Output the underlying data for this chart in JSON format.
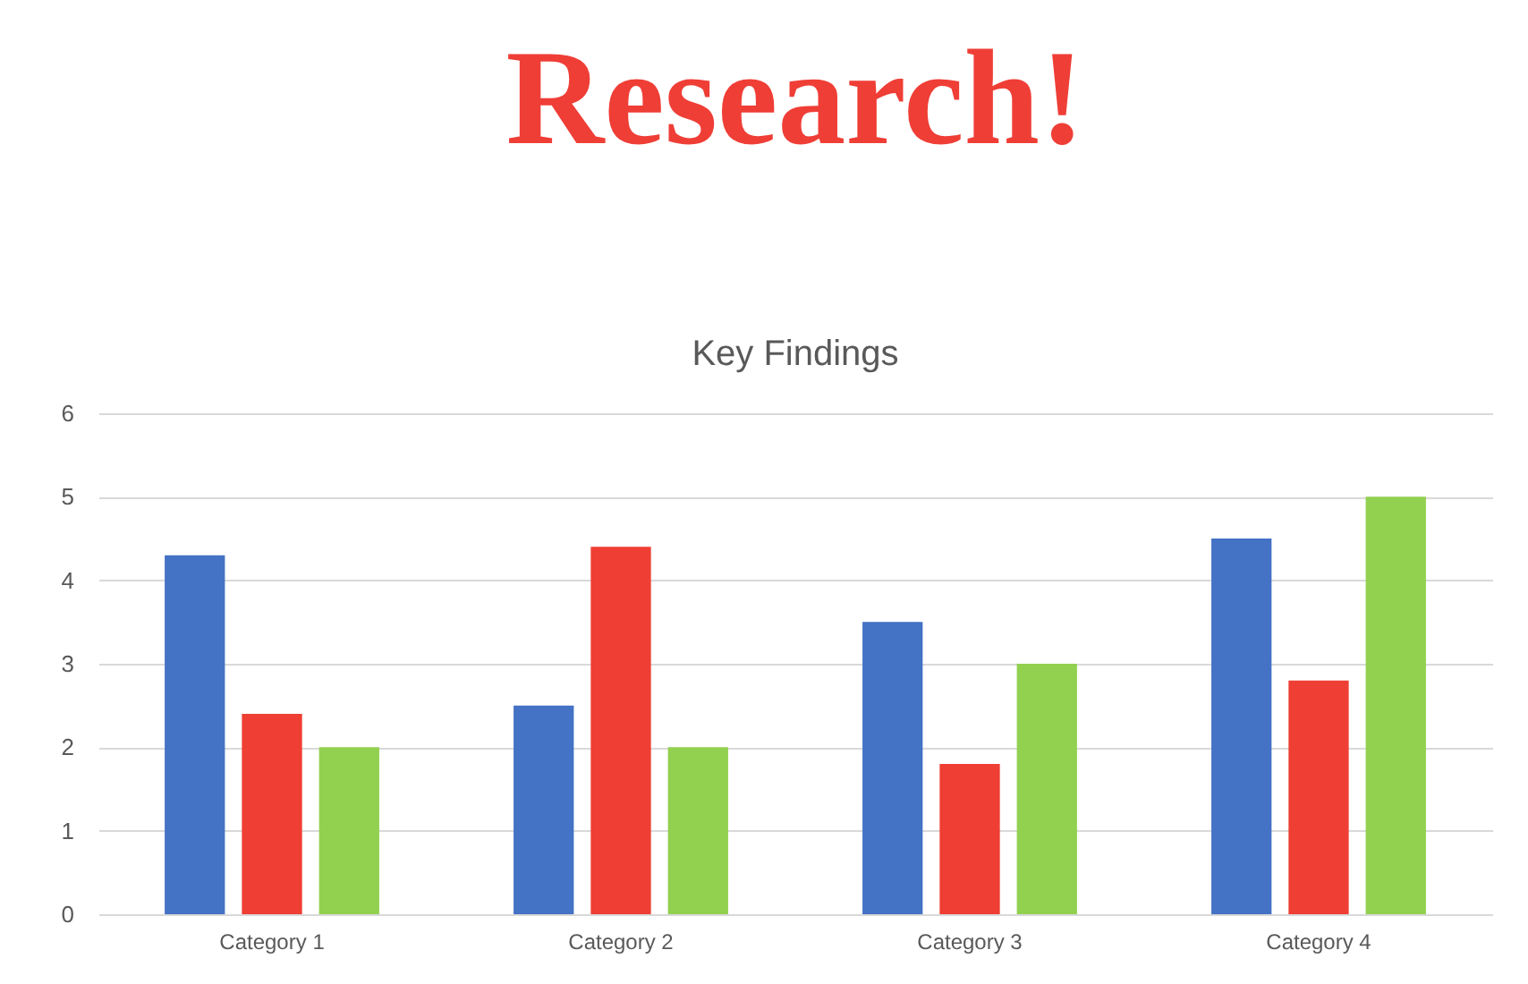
{
  "chart_data": {
    "type": "bar",
    "title": "Research!",
    "subtitle": "Key Findings",
    "categories": [
      "Category 1",
      "Category 2",
      "Category 3",
      "Category 4"
    ],
    "series": [
      {
        "color": "#4472c4",
        "values": [
          4.3,
          2.5,
          3.5,
          4.5
        ]
      },
      {
        "color": "#ef3e33",
        "values": [
          2.4,
          4.4,
          1.8,
          2.8
        ]
      },
      {
        "color": "#92d050",
        "values": [
          2.0,
          2.0,
          3.0,
          5.0
        ]
      }
    ],
    "ylim": [
      0,
      6
    ],
    "yticks": [
      0,
      1,
      2,
      3,
      4,
      5,
      6
    ],
    "grid": "y"
  }
}
